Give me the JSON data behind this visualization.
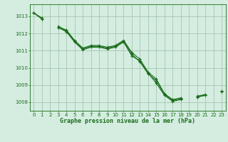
{
  "title": "Graphe pression niveau de la mer (hPa)",
  "line_color": "#1a6b1a",
  "bg_color": "#d4ede0",
  "grid_color": "#9dbfa8",
  "xlim": [
    -0.5,
    23.5
  ],
  "ylim": [
    1007.5,
    1013.7
  ],
  "yticks": [
    1008,
    1009,
    1010,
    1011,
    1012,
    1013
  ],
  "xticks": [
    0,
    1,
    2,
    3,
    4,
    5,
    6,
    7,
    8,
    9,
    10,
    11,
    12,
    13,
    14,
    15,
    16,
    17,
    18,
    19,
    20,
    21,
    22,
    23
  ],
  "s1": [
    1013.2,
    1012.85,
    null,
    1012.35,
    1012.15,
    1011.55,
    1011.1,
    1011.25,
    1011.25,
    1011.15,
    1011.25,
    1011.55,
    1010.8,
    1010.35,
    1009.65,
    1009.25,
    1008.45,
    1008.1,
    1008.2,
    null,
    1008.3,
    1008.4,
    null,
    1008.6
  ],
  "s2": [
    1013.2,
    1012.9,
    null,
    1012.4,
    1012.2,
    1011.6,
    1011.15,
    1011.3,
    1011.3,
    1011.2,
    1011.3,
    1011.6,
    1010.9,
    1010.5,
    1009.75,
    1009.35,
    1008.5,
    1008.15,
    1008.25,
    null,
    1008.35,
    1008.45,
    null,
    1008.65
  ],
  "s3": [
    1013.2,
    1012.85,
    null,
    1012.35,
    1012.1,
    1011.5,
    1011.05,
    1011.2,
    1011.2,
    1011.1,
    1011.2,
    1011.5,
    1010.7,
    1010.4,
    1009.7,
    1009.1,
    1008.4,
    1008.05,
    1008.15,
    null,
    1008.3,
    1008.4,
    null,
    1008.6
  ],
  "lw": 0.8,
  "ms": 3.5,
  "title_fontsize": 6,
  "tick_fontsize": 5
}
